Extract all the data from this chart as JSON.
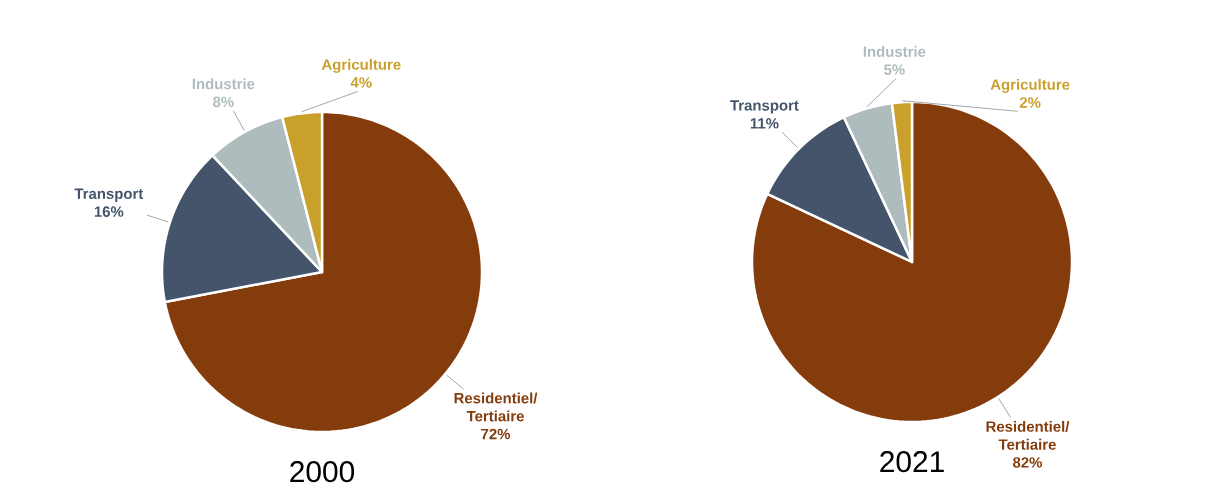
{
  "chart_data": [
    {
      "type": "pie",
      "title": "2000",
      "categories": [
        "Residentiel/ Tertiaire",
        "Transport",
        "Industrie",
        "Agriculture"
      ],
      "values": [
        72,
        16,
        8,
        4
      ],
      "value_labels": [
        "72%",
        "16%",
        "8%",
        "4%"
      ],
      "colors": [
        "#843c0c",
        "#44546a",
        "#aebcbd",
        "#c9a02c"
      ]
    },
    {
      "type": "pie",
      "title": "2021",
      "categories": [
        "Residentiel/ Tertiaire",
        "Transport",
        "Industrie",
        "Agriculture"
      ],
      "values": [
        82,
        11,
        5,
        2
      ],
      "value_labels": [
        "82%",
        "11%",
        "5%",
        "2%"
      ],
      "colors": [
        "#843c0c",
        "#44546a",
        "#aebcbd",
        "#c9a02c"
      ]
    }
  ]
}
